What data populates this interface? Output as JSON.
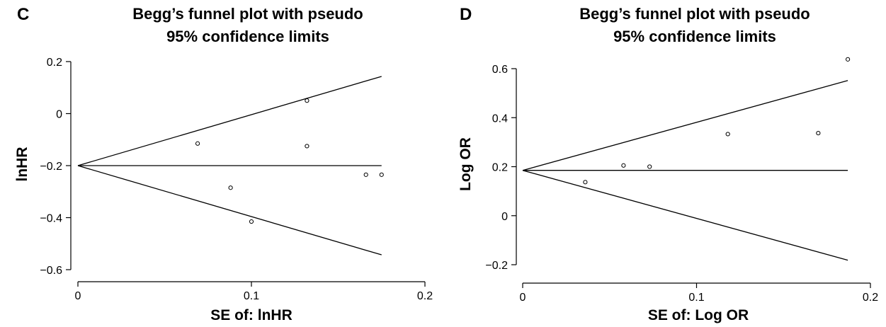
{
  "chart_data": [
    {
      "panel": "C",
      "type": "scatter",
      "title": [
        "Begg’s funnel plot with pseudo",
        "95% confidence limits"
      ],
      "xlabel": "SE of: lnHR",
      "ylabel": "lnHR",
      "xlim": [
        0,
        0.2
      ],
      "ylim": [
        -0.6,
        0.2
      ],
      "x_ticks": [
        0,
        0.1,
        0.2
      ],
      "x_tick_labels": [
        "0",
        "0.1",
        "0.2"
      ],
      "y_ticks": [
        -0.6,
        -0.4,
        -0.2,
        0,
        0.2
      ],
      "y_tick_labels": [
        "−0.6",
        "−0.4",
        "−0.2",
        "0",
        "0.2"
      ],
      "pooled_estimate": -0.2,
      "max_se": 0.175,
      "grid": false,
      "legend": "none",
      "points": [
        {
          "x": 0.069,
          "y": -0.115
        },
        {
          "x": 0.088,
          "y": -0.285
        },
        {
          "x": 0.1,
          "y": -0.415
        },
        {
          "x": 0.132,
          "y": 0.05
        },
        {
          "x": 0.132,
          "y": -0.125
        },
        {
          "x": 0.166,
          "y": -0.235
        },
        {
          "x": 0.175,
          "y": -0.235
        }
      ]
    },
    {
      "panel": "D",
      "type": "scatter",
      "title": [
        "Begg’s funnel plot with pseudo",
        "95% confidence limits"
      ],
      "xlabel": "SE of: Log OR",
      "ylabel": "Log OR",
      "xlim": [
        0,
        0.2
      ],
      "ylim": [
        -0.2,
        0.6
      ],
      "x_ticks": [
        0,
        0.1,
        0.2
      ],
      "x_tick_labels": [
        "0",
        "0.1",
        "0.2"
      ],
      "y_ticks": [
        -0.2,
        0,
        0.2,
        0.4,
        0.6
      ],
      "y_tick_labels": [
        "−0.2",
        "0",
        "0.2",
        "0.4",
        "0.6"
      ],
      "pooled_estimate": 0.185,
      "max_se": 0.187,
      "grid": false,
      "legend": "none",
      "points": [
        {
          "x": 0.036,
          "y": 0.137
        },
        {
          "x": 0.058,
          "y": 0.205
        },
        {
          "x": 0.073,
          "y": 0.2
        },
        {
          "x": 0.118,
          "y": 0.333
        },
        {
          "x": 0.17,
          "y": 0.337
        },
        {
          "x": 0.187,
          "y": 0.638
        }
      ]
    }
  ]
}
